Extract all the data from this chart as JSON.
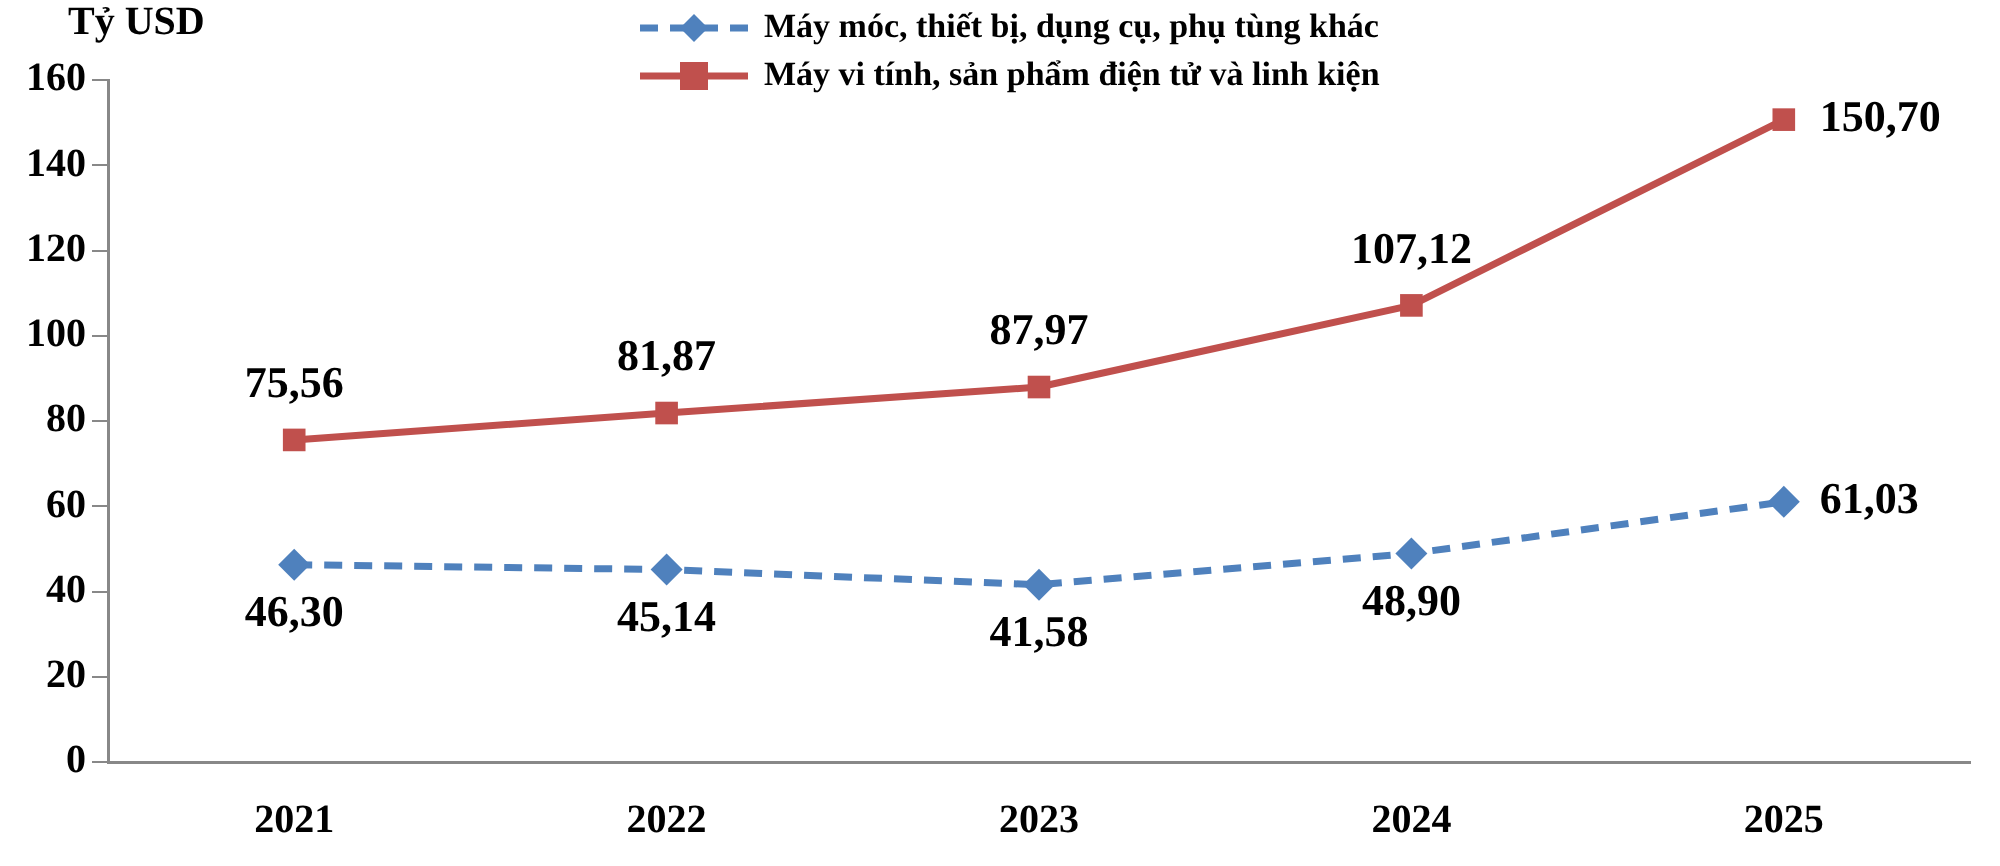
{
  "chart_data": {
    "type": "line",
    "ylabel": "Tỷ USD",
    "categories": [
      "2021",
      "2022",
      "2023",
      "2024",
      "2025"
    ],
    "series": [
      {
        "name": "Máy móc, thiết bị, dụng cụ, phụ tùng khác",
        "color": "#4f81bd",
        "values": [
          46.3,
          45.14,
          41.58,
          48.9,
          61.03
        ],
        "marker": "diamond",
        "line_style": "dashed",
        "value_labels": [
          "46,30",
          "45,14",
          "41,58",
          "48,90",
          "61,03"
        ]
      },
      {
        "name": "Máy vi tính, sản phẩm điện tử và linh kiện",
        "color": "#c0504d",
        "values": [
          75.56,
          81.87,
          87.97,
          107.12,
          150.7
        ],
        "marker": "square",
        "line_style": "solid",
        "value_labels": [
          "75,56",
          "81,87",
          "87,97",
          "107,12",
          "150,70"
        ]
      }
    ],
    "ylim": [
      0,
      160
    ],
    "yticks": [
      0,
      20,
      40,
      60,
      80,
      100,
      120,
      140,
      160
    ],
    "grid": false,
    "legend": "top"
  }
}
